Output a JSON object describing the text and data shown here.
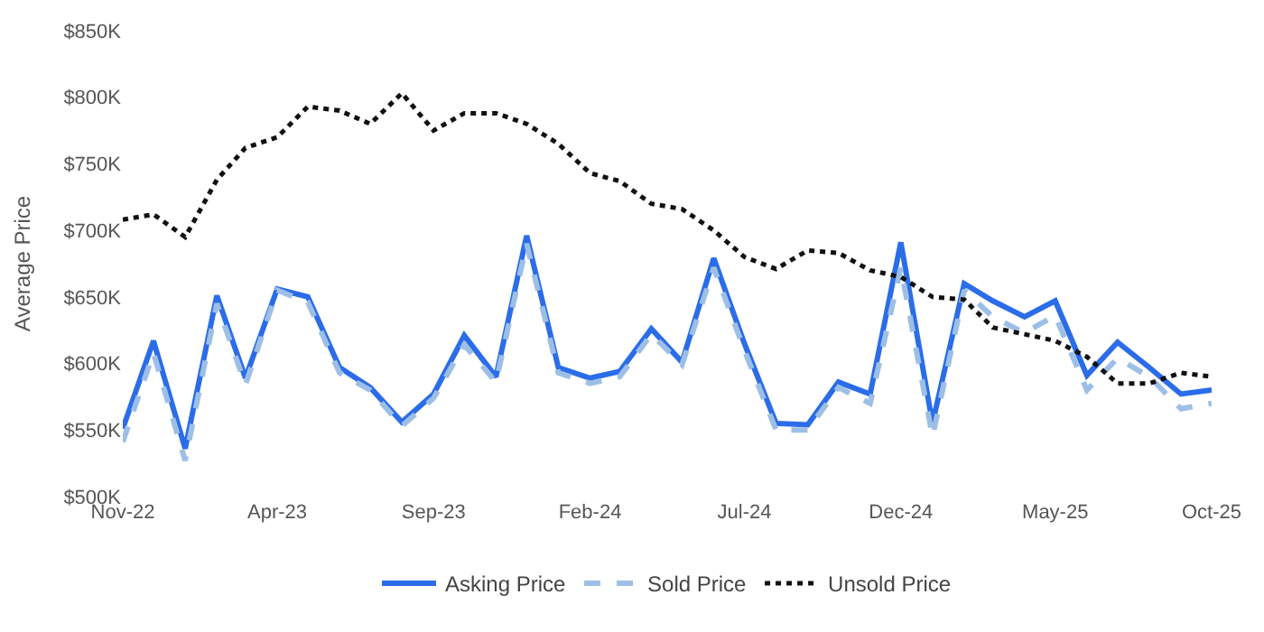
{
  "chart_data": {
    "type": "line",
    "ylabel": "Average Price",
    "x": [
      "2022-11",
      "2022-12",
      "2023-01",
      "2023-02",
      "2023-03",
      "2023-04",
      "2023-05",
      "2023-06",
      "2023-07",
      "2023-08",
      "2023-09",
      "2023-10",
      "2023-11",
      "2023-12",
      "2024-01",
      "2024-02",
      "2024-03",
      "2024-04",
      "2024-05",
      "2024-06",
      "2024-07",
      "2024-08",
      "2024-09",
      "2024-10",
      "2024-11",
      "2024-12",
      "2025-01",
      "2025-02",
      "2025-03",
      "2025-04",
      "2025-05",
      "2025-06",
      "2025-07",
      "2025-08",
      "2025-09",
      "2025-10"
    ],
    "series": [
      {
        "name": "Asking Price",
        "color": "#2b6de8",
        "line_style": "solid",
        "values": [
          551,
          617,
          536,
          651,
          589,
          656,
          650,
          597,
          582,
          556,
          577,
          621,
          590,
          696,
          597,
          589,
          594,
          626,
          601,
          679,
          615,
          555,
          554,
          586,
          577,
          691,
          555,
          660,
          647,
          635,
          647,
          591,
          616,
          597,
          577,
          580
        ]
      },
      {
        "name": "Sold Price",
        "color": "#9dbfe6",
        "line_style": "dashed",
        "values": [
          541,
          608,
          527,
          645,
          584,
          655,
          646,
          593,
          580,
          553,
          574,
          614,
          586,
          690,
          593,
          585,
          590,
          622,
          599,
          672,
          610,
          550,
          550,
          582,
          570,
          672,
          545,
          655,
          635,
          623,
          636,
          580,
          604,
          590,
          566,
          570
        ]
      },
      {
        "name": "Unsold Price",
        "color": "#111111",
        "line_style": "dotted",
        "values": [
          708,
          712,
          695,
          738,
          762,
          770,
          793,
          790,
          780,
          803,
          775,
          788,
          788,
          780,
          765,
          743,
          737,
          720,
          716,
          700,
          680,
          671,
          685,
          683,
          670,
          665,
          650,
          648,
          627,
          622,
          617,
          605,
          585,
          585,
          593,
          590
        ]
      }
    ],
    "xlim": [
      "2022-11",
      "2025-10"
    ],
    "xticks": [
      {
        "value": "2022-11",
        "label": "Nov-22"
      },
      {
        "value": "2023-04",
        "label": "Apr-23"
      },
      {
        "value": "2023-09",
        "label": "Sep-23"
      },
      {
        "value": "2024-02",
        "label": "Feb-24"
      },
      {
        "value": "2024-07",
        "label": "Jul-24"
      },
      {
        "value": "2024-12",
        "label": "Dec-24"
      },
      {
        "value": "2025-05",
        "label": "May-25"
      },
      {
        "value": "2025-10",
        "label": "Oct-25"
      }
    ],
    "ylim": [
      500,
      850
    ],
    "yticks": [
      {
        "value": 500,
        "label": "$500K"
      },
      {
        "value": 550,
        "label": "$550K"
      },
      {
        "value": 600,
        "label": "$600K"
      },
      {
        "value": 650,
        "label": "$650K"
      },
      {
        "value": 700,
        "label": "$700K"
      },
      {
        "value": 750,
        "label": "$750K"
      },
      {
        "value": 800,
        "label": "$800K"
      },
      {
        "value": 850,
        "label": "$850K"
      }
    ],
    "legend": "bottom",
    "marker": "none"
  }
}
